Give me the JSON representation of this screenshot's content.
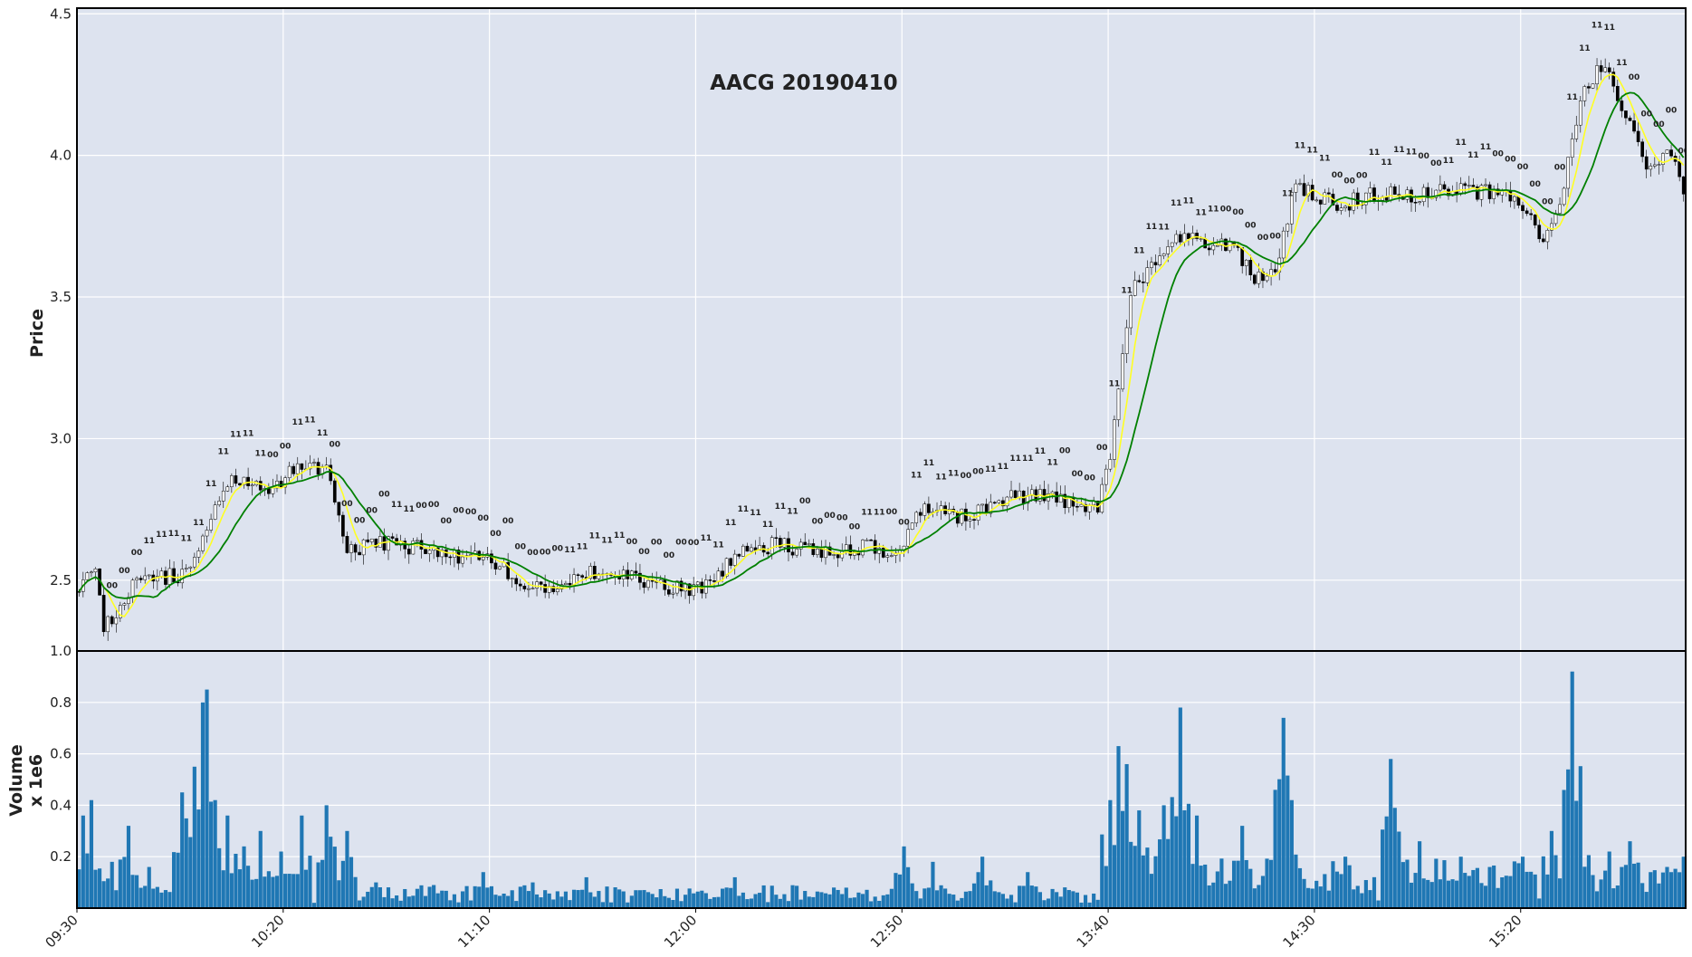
{
  "chart_data": [
    {
      "type": "candlestick",
      "title": "AACG 20190410",
      "ylabel": "Price",
      "ylim": [
        2.25,
        4.52
      ],
      "yticks": [
        "2.5",
        "3.0",
        "3.5",
        "4.0",
        "4.5"
      ],
      "ytick_values": [
        2.5,
        3.0,
        3.5,
        4.0,
        4.5
      ],
      "time_start": "09:30",
      "time_end": "16:00",
      "price_anchors": [
        [
          "09:30",
          2.46
        ],
        [
          "09:34",
          2.55
        ],
        [
          "09:36",
          2.32
        ],
        [
          "09:40",
          2.42
        ],
        [
          "09:45",
          2.52
        ],
        [
          "09:50",
          2.51
        ],
        [
          "09:55",
          2.52
        ],
        [
          "10:00",
          2.66
        ],
        [
          "10:05",
          2.84
        ],
        [
          "10:10",
          2.84
        ],
        [
          "10:15",
          2.82
        ],
        [
          "10:20",
          2.86
        ],
        [
          "10:25",
          2.92
        ],
        [
          "10:30",
          2.88
        ],
        [
          "10:35",
          2.59
        ],
        [
          "10:40",
          2.63
        ],
        [
          "10:50",
          2.62
        ],
        [
          "11:00",
          2.59
        ],
        [
          "11:10",
          2.58
        ],
        [
          "11:17",
          2.47
        ],
        [
          "11:25",
          2.46
        ],
        [
          "11:35",
          2.53
        ],
        [
          "11:45",
          2.5
        ],
        [
          "11:55",
          2.47
        ],
        [
          "12:02",
          2.48
        ],
        [
          "12:10",
          2.6
        ],
        [
          "12:20",
          2.63
        ],
        [
          "12:30",
          2.59
        ],
        [
          "12:40",
          2.62
        ],
        [
          "12:48",
          2.6
        ],
        [
          "12:55",
          2.76
        ],
        [
          "13:05",
          2.72
        ],
        [
          "13:15",
          2.8
        ],
        [
          "13:25",
          2.79
        ],
        [
          "13:37",
          2.75
        ],
        [
          "13:40",
          2.95
        ],
        [
          "13:45",
          3.52
        ],
        [
          "13:55",
          3.72
        ],
        [
          "14:00",
          3.7
        ],
        [
          "14:10",
          3.68
        ],
        [
          "14:15",
          3.55
        ],
        [
          "14:20",
          3.6
        ],
        [
          "14:25",
          3.9
        ],
        [
          "14:35",
          3.82
        ],
        [
          "14:45",
          3.87
        ],
        [
          "14:55",
          3.86
        ],
        [
          "15:05",
          3.88
        ],
        [
          "15:15",
          3.86
        ],
        [
          "15:20",
          3.82
        ],
        [
          "15:25",
          3.68
        ],
        [
          "15:30",
          3.9
        ],
        [
          "15:35",
          4.25
        ],
        [
          "15:40",
          4.32
        ],
        [
          "15:45",
          4.15
        ],
        [
          "15:50",
          3.95
        ],
        [
          "15:55",
          4.02
        ],
        [
          "16:00",
          3.86
        ]
      ],
      "moving_averages": [
        {
          "color": "#ffff22",
          "period": 6
        },
        {
          "color": "#008000",
          "period": 14
        }
      ],
      "signal_markers": [
        {
          "label": "1",
          "color": "#008000",
          "meaning": "above"
        },
        {
          "label": "0",
          "color": "#ff0000",
          "meaning": "below"
        }
      ]
    },
    {
      "type": "bar",
      "ylabel": "Volume",
      "ylabel2": "x 1e6",
      "ylim": [
        0,
        1.0
      ],
      "yticks": [
        "0.2",
        "0.4",
        "0.6",
        "0.8",
        "1.0"
      ],
      "ytick_values": [
        0.2,
        0.4,
        0.6,
        0.8,
        1.0
      ],
      "bar_color": "#1f77b4",
      "xticks": [
        "09:30",
        "10:20",
        "11:10",
        "12:00",
        "12:50",
        "13:40",
        "14:30",
        "15:20"
      ],
      "volume_peaks": [
        [
          "09:31",
          0.36
        ],
        [
          "09:33",
          0.42
        ],
        [
          "09:38",
          0.18
        ],
        [
          "09:42",
          0.32
        ],
        [
          "09:47",
          0.16
        ],
        [
          "09:55",
          0.45
        ],
        [
          "09:58",
          0.55
        ],
        [
          "10:00",
          0.8
        ],
        [
          "10:01",
          0.85
        ],
        [
          "10:03",
          0.42
        ],
        [
          "10:06",
          0.36
        ],
        [
          "10:10",
          0.24
        ],
        [
          "10:14",
          0.3
        ],
        [
          "10:19",
          0.22
        ],
        [
          "10:24",
          0.36
        ],
        [
          "10:30",
          0.4
        ],
        [
          "10:35",
          0.3
        ],
        [
          "10:42",
          0.1
        ],
        [
          "10:53",
          0.08
        ],
        [
          "11:08",
          0.14
        ],
        [
          "11:20",
          0.1
        ],
        [
          "11:33",
          0.12
        ],
        [
          "11:55",
          0.06
        ],
        [
          "12:09",
          0.12
        ],
        [
          "12:33",
          0.08
        ],
        [
          "12:50",
          0.24
        ],
        [
          "12:57",
          0.18
        ],
        [
          "13:09",
          0.2
        ],
        [
          "13:20",
          0.14
        ],
        [
          "13:40",
          0.42
        ],
        [
          "13:42",
          0.63
        ],
        [
          "13:44",
          0.56
        ],
        [
          "13:47",
          0.38
        ],
        [
          "13:53",
          0.4
        ],
        [
          "13:57",
          0.78
        ],
        [
          "14:01",
          0.36
        ],
        [
          "14:12",
          0.32
        ],
        [
          "14:20",
          0.46
        ],
        [
          "14:22",
          0.74
        ],
        [
          "14:24",
          0.42
        ],
        [
          "14:37",
          0.2
        ],
        [
          "14:48",
          0.58
        ],
        [
          "14:55",
          0.26
        ],
        [
          "15:05",
          0.2
        ],
        [
          "15:12",
          0.16
        ],
        [
          "15:20",
          0.2
        ],
        [
          "15:27",
          0.3
        ],
        [
          "15:32",
          0.92
        ],
        [
          "15:34",
          0.3
        ],
        [
          "15:41",
          0.22
        ],
        [
          "15:46",
          0.26
        ],
        [
          "15:51",
          0.14
        ],
        [
          "15:56",
          0.14
        ],
        [
          "15:59",
          0.2
        ]
      ]
    }
  ]
}
